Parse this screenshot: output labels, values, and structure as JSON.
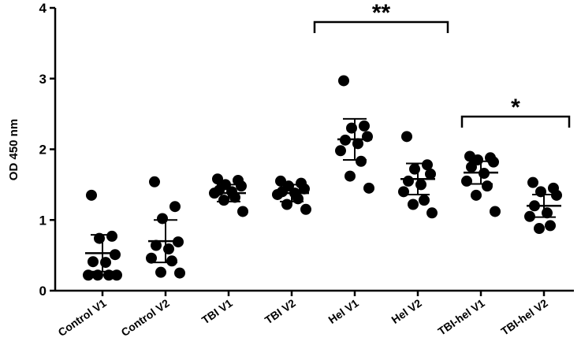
{
  "chart_data": {
    "type": "scatter",
    "ylabel": "OD 450 nm",
    "categories": [
      "Control V1",
      "Control V2",
      "TBI V1",
      "TBI V2",
      "Hel V1",
      "Hel V2",
      "TBI-hel V1",
      "TBI-hel V2"
    ],
    "values": [
      [
        1.35,
        0.77,
        0.74,
        0.51,
        0.41,
        0.4,
        0.22,
        0.22,
        0.22,
        0.22
      ],
      [
        1.54,
        1.19,
        1.02,
        0.69,
        0.64,
        0.59,
        0.46,
        0.42,
        0.26,
        0.25
      ],
      [
        1.58,
        1.56,
        1.5,
        1.48,
        1.42,
        1.4,
        1.38,
        1.32,
        1.28,
        1.12
      ],
      [
        1.55,
        1.52,
        1.48,
        1.44,
        1.4,
        1.38,
        1.36,
        1.3,
        1.22,
        1.15
      ],
      [
        2.97,
        2.33,
        2.3,
        2.18,
        2.13,
        2.08,
        1.98,
        1.83,
        1.62,
        1.45
      ],
      [
        2.18,
        1.78,
        1.72,
        1.65,
        1.55,
        1.5,
        1.4,
        1.28,
        1.22,
        1.1
      ],
      [
        1.9,
        1.88,
        1.85,
        1.82,
        1.75,
        1.66,
        1.55,
        1.48,
        1.35,
        1.12
      ],
      [
        1.53,
        1.45,
        1.4,
        1.35,
        1.2,
        1.1,
        1.05,
        0.92,
        0.88
      ]
    ],
    "means": [
      0.53,
      0.7,
      1.38,
      1.38,
      2.14,
      1.58,
      1.67,
      1.2
    ],
    "sds": [
      0.26,
      0.3,
      0.12,
      0.12,
      0.29,
      0.22,
      0.16,
      0.16
    ],
    "color": "#000000",
    "ylim": [
      0,
      4
    ],
    "yticks": [
      0,
      1,
      2,
      3,
      4
    ],
    "annotations": [
      "**",
      "*"
    ]
  }
}
